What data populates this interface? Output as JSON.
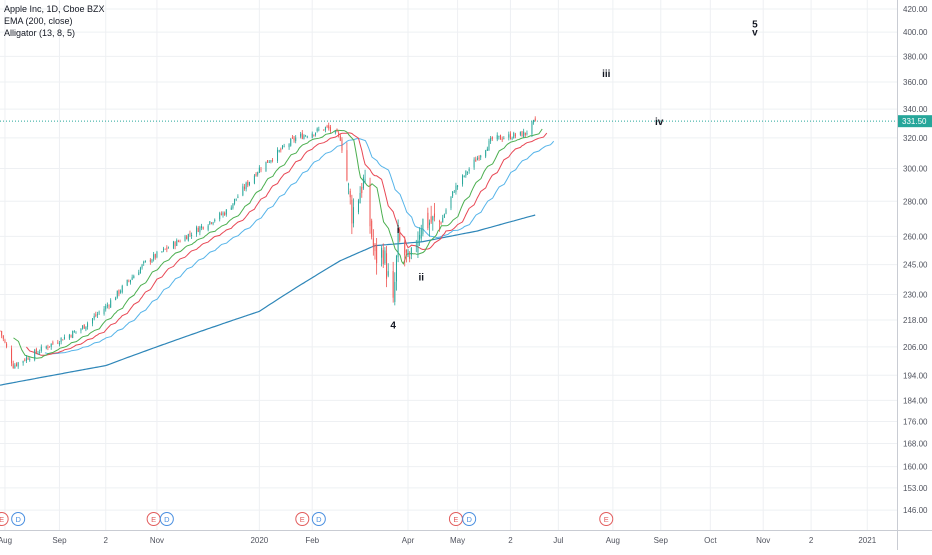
{
  "legend": {
    "symbol": "Apple Inc, 1D, Cboe BZX",
    "ema": "EMA (200, close)",
    "alligator": "Alligator (13, 8, 5)"
  },
  "colors": {
    "up": "#26a69a",
    "down": "#ef5350",
    "ema": "#2e86b8",
    "jaw": "#56b4e9",
    "teeth": "#e84855",
    "lips": "#4caf50",
    "price_line": "#26a69a",
    "price_label_bg": "#26a69a",
    "event_earnings": "#e25c5c",
    "event_dividend": "#4a8fe0",
    "grid": "#eef0f3",
    "axis_text": "#50535e"
  },
  "chart_data": {
    "type": "candlestick",
    "y_scale": "log",
    "ylim": [
      140,
      428
    ],
    "x_range": [
      "2019-07-29",
      "2021-01-22"
    ],
    "y_ticks": [
      420.0,
      400.0,
      380.0,
      360.0,
      340.0,
      320.0,
      300.0,
      280.0,
      260.0,
      245.0,
      230.0,
      218.0,
      206.0,
      194.0,
      184.0,
      176.0,
      168.0,
      160.0,
      153.0,
      146.0
    ],
    "x_ticks": [
      {
        "label": "Aug",
        "date": "2019-08-01"
      },
      {
        "label": "Sep",
        "date": "2019-09-03"
      },
      {
        "label": "2",
        "date": "2019-10-01"
      },
      {
        "label": "Nov",
        "date": "2019-11-01"
      },
      {
        "label": "2020",
        "date": "2020-01-02"
      },
      {
        "label": "Feb",
        "date": "2020-02-03"
      },
      {
        "label": "Apr",
        "date": "2020-04-01"
      },
      {
        "label": "May",
        "date": "2020-05-01"
      },
      {
        "label": "2",
        "date": "2020-06-02"
      },
      {
        "label": "Jul",
        "date": "2020-07-01"
      },
      {
        "label": "Aug",
        "date": "2020-08-03"
      },
      {
        "label": "Sep",
        "date": "2020-09-01"
      },
      {
        "label": "Oct",
        "date": "2020-10-01"
      },
      {
        "label": "Nov",
        "date": "2020-11-02"
      },
      {
        "label": "2",
        "date": "2020-12-01"
      },
      {
        "label": "2021",
        "date": "2021-01-04"
      }
    ],
    "last_price": 331.5,
    "price_waypoints": [
      {
        "date": "2019-07-29",
        "close": 213
      },
      {
        "date": "2019-08-06",
        "close": 198
      },
      {
        "date": "2019-08-26",
        "close": 206
      },
      {
        "date": "2019-09-16",
        "close": 214
      },
      {
        "date": "2019-10-01",
        "close": 224
      },
      {
        "date": "2019-10-25",
        "close": 246
      },
      {
        "date": "2019-11-22",
        "close": 262
      },
      {
        "date": "2019-12-13",
        "close": 274
      },
      {
        "date": "2020-01-02",
        "close": 300
      },
      {
        "date": "2020-01-24",
        "close": 320
      },
      {
        "date": "2020-02-12",
        "close": 327
      },
      {
        "date": "2020-02-20",
        "close": 320
      },
      {
        "date": "2020-02-27",
        "close": 273
      },
      {
        "date": "2020-03-05",
        "close": 292
      },
      {
        "date": "2020-03-12",
        "close": 248
      },
      {
        "date": "2020-03-17",
        "close": 252
      },
      {
        "date": "2020-03-23",
        "close": 224
      },
      {
        "date": "2020-03-26",
        "close": 258
      },
      {
        "date": "2020-04-02",
        "close": 244
      },
      {
        "date": "2020-04-09",
        "close": 268
      },
      {
        "date": "2020-04-21",
        "close": 268
      },
      {
        "date": "2020-04-29",
        "close": 287
      },
      {
        "date": "2020-05-13",
        "close": 307
      },
      {
        "date": "2020-05-22",
        "close": 319
      },
      {
        "date": "2020-06-11",
        "close": 323
      },
      {
        "date": "2020-06-17",
        "close": 331.5
      }
    ],
    "ema200_waypoints": [
      {
        "date": "2019-07-29",
        "value": 190
      },
      {
        "date": "2019-10-01",
        "value": 198
      },
      {
        "date": "2020-01-02",
        "value": 222
      },
      {
        "date": "2020-02-20",
        "value": 247
      },
      {
        "date": "2020-03-12",
        "value": 255
      },
      {
        "date": "2020-04-09",
        "value": 257
      },
      {
        "date": "2020-05-13",
        "value": 263
      },
      {
        "date": "2020-06-17",
        "value": 272
      }
    ],
    "alligator": {
      "jaw_period": 13,
      "jaw_offset": 8,
      "teeth_period": 8,
      "teeth_offset": 5,
      "lips_period": 5,
      "lips_offset": 3
    },
    "wave_labels": [
      {
        "text": "5",
        "date": "2020-10-28",
        "price": 404
      },
      {
        "text": "v",
        "date": "2020-10-28",
        "price": 397
      },
      {
        "text": "iii",
        "date": "2020-07-30",
        "price": 364
      },
      {
        "text": "iv",
        "date": "2020-08-31",
        "price": 329
      },
      {
        "text": "i",
        "date": "2020-03-26",
        "price": 262
      },
      {
        "text": "ii",
        "date": "2020-04-09",
        "price": 237
      },
      {
        "text": "4",
        "date": "2020-03-23",
        "price": 214
      }
    ],
    "events": [
      {
        "type": "E",
        "date": "2019-07-30"
      },
      {
        "type": "D",
        "date": "2019-08-09"
      },
      {
        "type": "E",
        "date": "2019-10-30"
      },
      {
        "type": "D",
        "date": "2019-11-07"
      },
      {
        "type": "E",
        "date": "2020-01-28"
      },
      {
        "type": "D",
        "date": "2020-02-07"
      },
      {
        "type": "E",
        "date": "2020-04-30"
      },
      {
        "type": "D",
        "date": "2020-05-08"
      },
      {
        "type": "E",
        "date": "2020-07-30"
      }
    ]
  }
}
